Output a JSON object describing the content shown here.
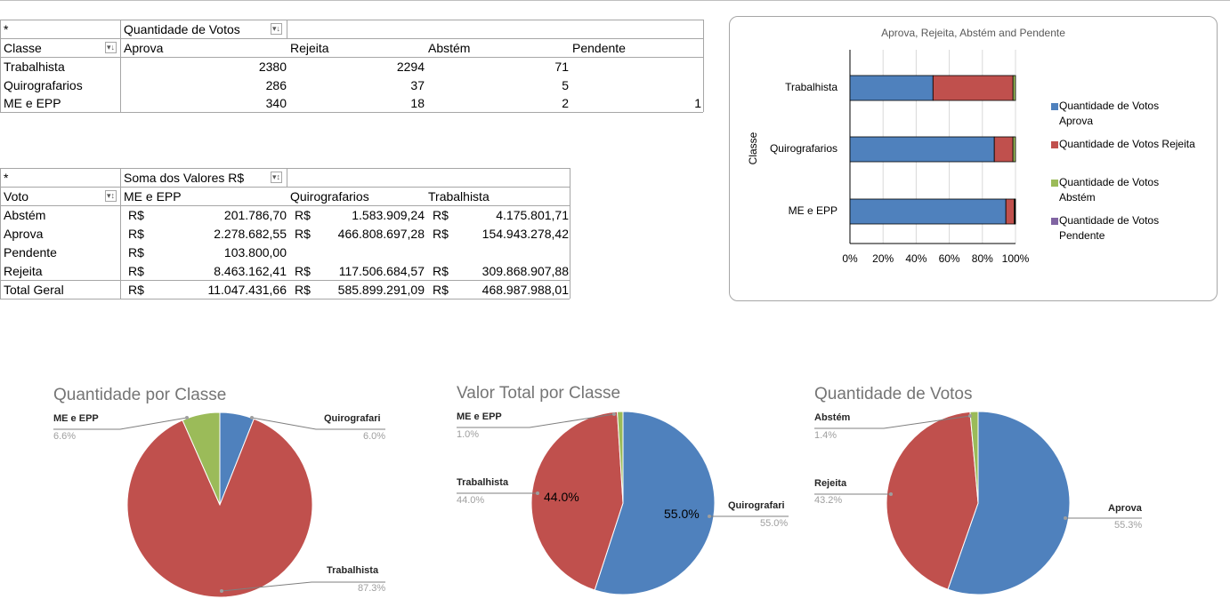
{
  "pivot1": {
    "filter_label": "*",
    "values_header": "Quantidade de Votos",
    "row_header": "Classe",
    "columns": [
      "Aprova",
      "Rejeita",
      "Abstém",
      "Pendente"
    ],
    "rows": [
      {
        "label": "Trabalhista",
        "values": [
          "2380",
          "2294",
          "71",
          ""
        ]
      },
      {
        "label": "Quirografarios",
        "values": [
          "286",
          "37",
          "5",
          ""
        ]
      },
      {
        "label": "ME e EPP",
        "values": [
          "340",
          "18",
          "2",
          "1"
        ]
      }
    ]
  },
  "pivot2": {
    "filter_label": "*",
    "values_header": "Soma dos Valores R$",
    "row_header": "Voto",
    "columns": [
      "ME e EPP",
      "Quirografarios",
      "Trabalhista"
    ],
    "currency": "R$",
    "rows": [
      {
        "label": "Abstém",
        "values": [
          "201.786,70",
          "1.583.909,24",
          "4.175.801,71"
        ]
      },
      {
        "label": "Aprova",
        "values": [
          "2.278.682,55",
          "466.808.697,28",
          "154.943.278,42"
        ]
      },
      {
        "label": "Pendente",
        "values": [
          "103.800,00",
          "",
          ""
        ]
      },
      {
        "label": "Rejeita",
        "values": [
          "8.463.162,41",
          "117.506.684,57",
          "309.868.907,88"
        ]
      },
      {
        "label": "Total Geral",
        "values": [
          "11.047.431,66",
          "585.899.291,09",
          "468.987.988,01"
        ]
      }
    ]
  },
  "chart_data": [
    {
      "type": "bar",
      "orientation": "horizontal",
      "stacked": "100%",
      "title": "Aprova, Rejeita, Abstém and Pendente",
      "ylabel": "Classe",
      "xlabel": "",
      "categories": [
        "Trabalhista",
        "Quirografarios",
        "ME e EPP"
      ],
      "x_ticks": [
        "0%",
        "20%",
        "40%",
        "60%",
        "80%",
        "100%"
      ],
      "xlim": [
        0,
        100
      ],
      "grid": true,
      "legend_position": "right",
      "series": [
        {
          "name": "Quantidade de Votos Aprova",
          "color": "#4f81bd",
          "values": [
            2380,
            286,
            340
          ]
        },
        {
          "name": "Quantidade de Votos Rejeita",
          "color": "#c0504d",
          "values": [
            2294,
            37,
            18
          ]
        },
        {
          "name": "Quantidade de Votos Abstém",
          "color": "#9bbb59",
          "values": [
            71,
            5,
            2
          ]
        },
        {
          "name": "Quantidade de Votos Pendente",
          "color": "#8064a2",
          "values": [
            0,
            0,
            1
          ]
        }
      ]
    },
    {
      "type": "pie",
      "title": "Quantidade por Classe",
      "labels": [
        "Quirografari",
        "Trabalhista",
        "ME e EPP"
      ],
      "values": [
        6.0,
        87.3,
        6.6
      ],
      "percent_labels": [
        "6.0%",
        "87.3%",
        "6.6%"
      ],
      "colors": [
        "#4f81bd",
        "#c0504d",
        "#9bbb59"
      ]
    },
    {
      "type": "pie",
      "title": "Valor Total por Classe",
      "labels": [
        "Quirografari",
        "Trabalhista",
        "ME e EPP"
      ],
      "values": [
        55.0,
        44.0,
        1.0
      ],
      "percent_labels": [
        "55.0%",
        "44.0%",
        "1.0%"
      ],
      "inner_labels": [
        "55.0%",
        "44.0%"
      ],
      "colors": [
        "#4f81bd",
        "#c0504d",
        "#9bbb59"
      ]
    },
    {
      "type": "pie",
      "title": "Quantidade de Votos",
      "labels": [
        "Aprova",
        "Rejeita",
        "Abstém"
      ],
      "values": [
        55.3,
        43.2,
        1.4
      ],
      "percent_labels": [
        "55.3%",
        "43.2%",
        "1.4%"
      ],
      "colors": [
        "#4f81bd",
        "#c0504d",
        "#9bbb59"
      ]
    }
  ]
}
